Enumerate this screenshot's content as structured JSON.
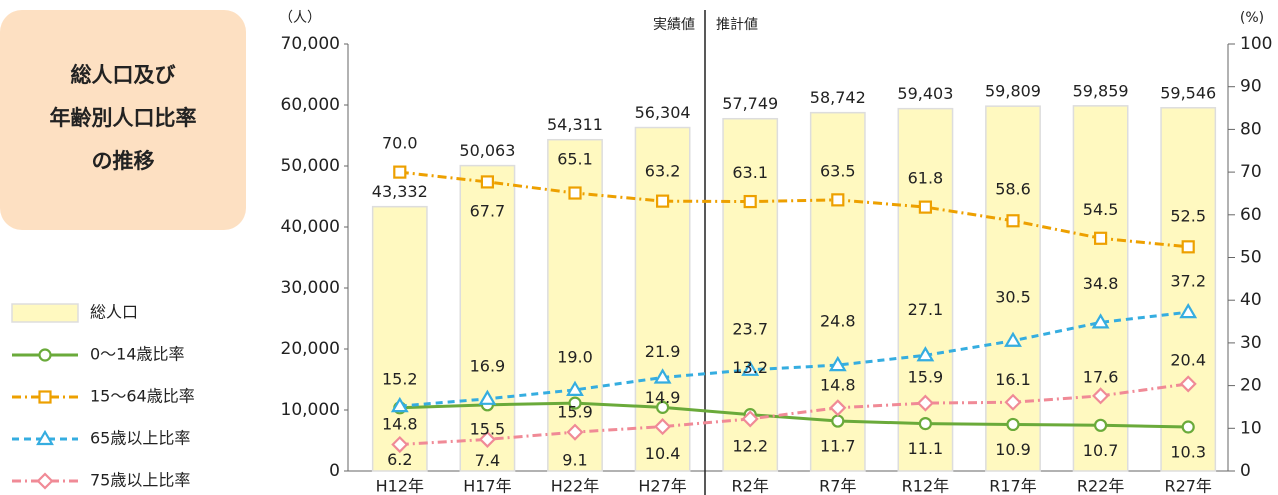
{
  "title_lines": [
    "総人口及び",
    "年齢別人口比率",
    "の推移"
  ],
  "chart_data": {
    "type": "bar",
    "y_unit": "（人）",
    "y2_unit": "(%)",
    "annotations": [
      "実績値",
      "推計値"
    ],
    "categories": [
      "H12年",
      "H17年",
      "H22年",
      "H27年",
      "R2年",
      "R7年",
      "R12年",
      "R17年",
      "R22年",
      "R27年"
    ],
    "series": [
      {
        "name": "総人口",
        "type": "bar",
        "color": "#fff9c0",
        "values": [
          43332,
          50063,
          54311,
          56304,
          57749,
          58742,
          59403,
          59809,
          59859,
          59546
        ],
        "value_labels": [
          "43,332",
          "50,063",
          "54,311",
          "56,304",
          "57,749",
          "58,742",
          "59,403",
          "59,809",
          "59,859",
          "59,546"
        ]
      },
      {
        "name": "0～14歳比率",
        "type": "line",
        "axis": "y2",
        "color": "#6aaa3a",
        "marker": "circle",
        "dash": "solid",
        "values": [
          14.8,
          15.5,
          15.9,
          14.9,
          13.2,
          11.7,
          11.1,
          10.9,
          10.7,
          10.3
        ]
      },
      {
        "name": "15～64歳比率",
        "type": "line",
        "axis": "y2",
        "color": "#eda000",
        "marker": "square",
        "dash": "dashdot",
        "values": [
          70,
          67.7,
          65.1,
          63.2,
          63.1,
          63.5,
          61.8,
          58.6,
          54.5,
          52.5
        ],
        "value_labels": [
          "70.0",
          "67.7",
          "65.1",
          "63.2",
          "63.1",
          "63.5",
          "61.8",
          "58.6",
          "54.5",
          "52.5"
        ]
      },
      {
        "name": "65歳以上比率",
        "type": "line",
        "axis": "y2",
        "color": "#35ade0",
        "marker": "triangle",
        "dash": "dashed",
        "values": [
          15.2,
          16.9,
          19,
          21.9,
          23.7,
          24.8,
          27.1,
          30.5,
          34.8,
          37.2
        ],
        "value_labels": [
          "15.2",
          "16.9",
          "19.0",
          "21.9",
          "23.7",
          "24.8",
          "27.1",
          "30.5",
          "34.8",
          "37.2"
        ]
      },
      {
        "name": "75歳以上比率",
        "type": "line",
        "axis": "y2",
        "color": "#f08a96",
        "marker": "diamond",
        "dash": "dashdot",
        "values": [
          6.2,
          7.4,
          9.1,
          10.4,
          12.2,
          14.8,
          15.9,
          16.1,
          17.6,
          20.4
        ]
      }
    ],
    "ylim": [
      0,
      70000
    ],
    "yticks": [
      0,
      {
        "value": 10000,
        "label": "10,000"
      },
      {
        "value": 20000,
        "label": "20,000"
      },
      {
        "value": 30000,
        "label": "30,000"
      },
      {
        "value": 40000,
        "label": "40,000"
      },
      {
        "value": 50000,
        "label": "50,000"
      },
      {
        "value": 60000,
        "label": "60,000"
      },
      {
        "value": 70000,
        "label": "70,000"
      }
    ],
    "y2lim": [
      0,
      100
    ],
    "y2ticks": [
      0,
      10,
      20,
      30,
      40,
      50,
      60,
      70,
      80,
      90,
      100
    ],
    "grid": false
  }
}
